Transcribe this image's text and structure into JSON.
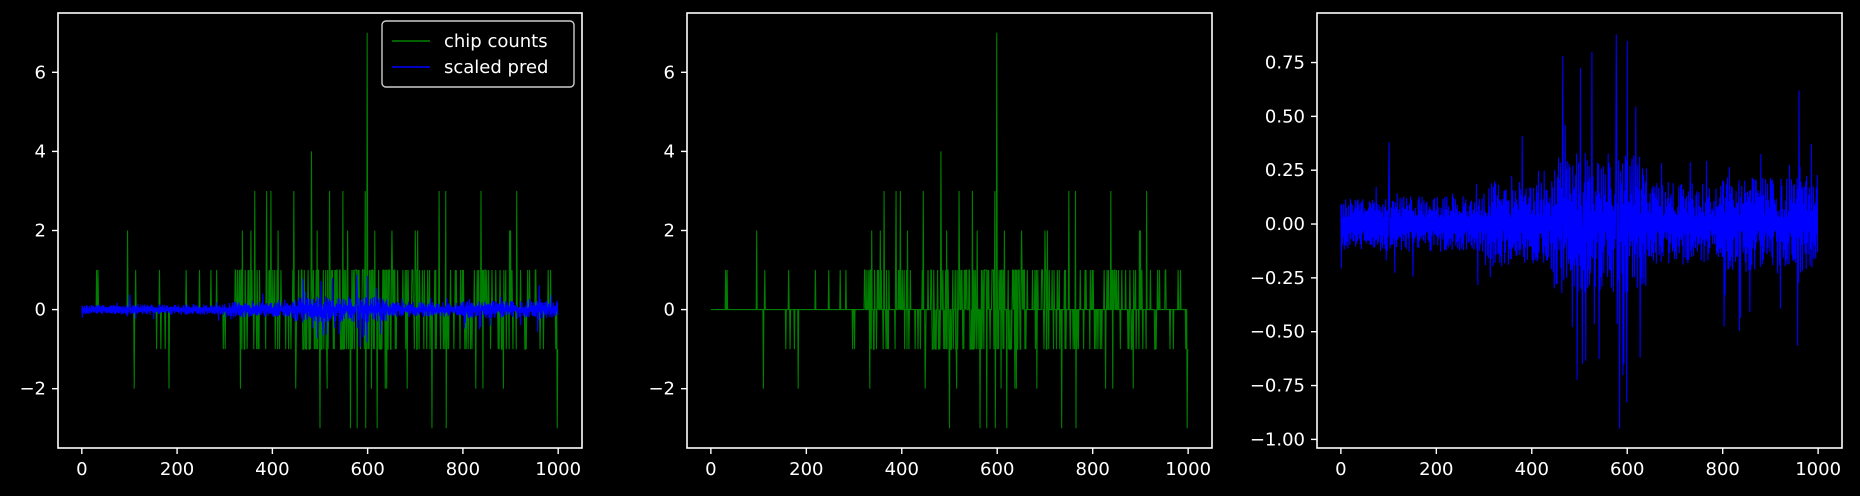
{
  "colors": {
    "background": "#000000",
    "axes": "#ffffff",
    "chip_counts": "#008000",
    "scaled_pred": "#0000ff"
  },
  "chart_data": [
    {
      "type": "line",
      "title": "",
      "xlabel": "",
      "ylabel": "",
      "xlim": [
        -50,
        1050
      ],
      "ylim": [
        -3.5,
        7.5
      ],
      "xticks": [
        0,
        200,
        400,
        600,
        800,
        1000
      ],
      "yticks": [
        -2,
        0,
        2,
        4,
        6
      ],
      "legend": {
        "placement": "top-right",
        "entries": [
          "chip counts",
          "scaled pred"
        ]
      },
      "series": [
        {
          "name": "chip counts",
          "kind": "integer steps",
          "n_points": 1000,
          "range": [
            -3,
            7
          ]
        },
        {
          "name": "scaled pred",
          "kind": "two-band noise",
          "n_points": 1000,
          "range": [
            -0.95,
            0.88
          ]
        }
      ]
    },
    {
      "type": "line",
      "title": "",
      "xlabel": "",
      "ylabel": "",
      "xlim": [
        -50,
        1050
      ],
      "ylim": [
        -3.5,
        7.5
      ],
      "xticks": [
        0,
        200,
        400,
        600,
        800,
        1000
      ],
      "yticks": [
        -2,
        0,
        2,
        4,
        6
      ],
      "series": [
        {
          "kind": "integer steps",
          "n_points": 1000,
          "range": [
            -3,
            7
          ]
        }
      ]
    },
    {
      "type": "line",
      "title": "",
      "xlabel": "",
      "ylabel": "",
      "xlim": [
        -50,
        1050
      ],
      "ylim": [
        -1.04,
        0.98
      ],
      "xticks": [
        0,
        200,
        400,
        600,
        800,
        1000
      ],
      "yticks": [
        -1.0,
        -0.75,
        -0.5,
        -0.25,
        0.0,
        0.25,
        0.5,
        0.75
      ],
      "ytick_labels": [
        "−1.00",
        "−0.75",
        "−0.50",
        "−0.25",
        "0.00",
        "0.25",
        "0.50",
        "0.75"
      ],
      "series": [
        {
          "kind": "two-band noise",
          "n_points": 1000,
          "range": [
            -0.95,
            0.88
          ]
        }
      ]
    }
  ]
}
